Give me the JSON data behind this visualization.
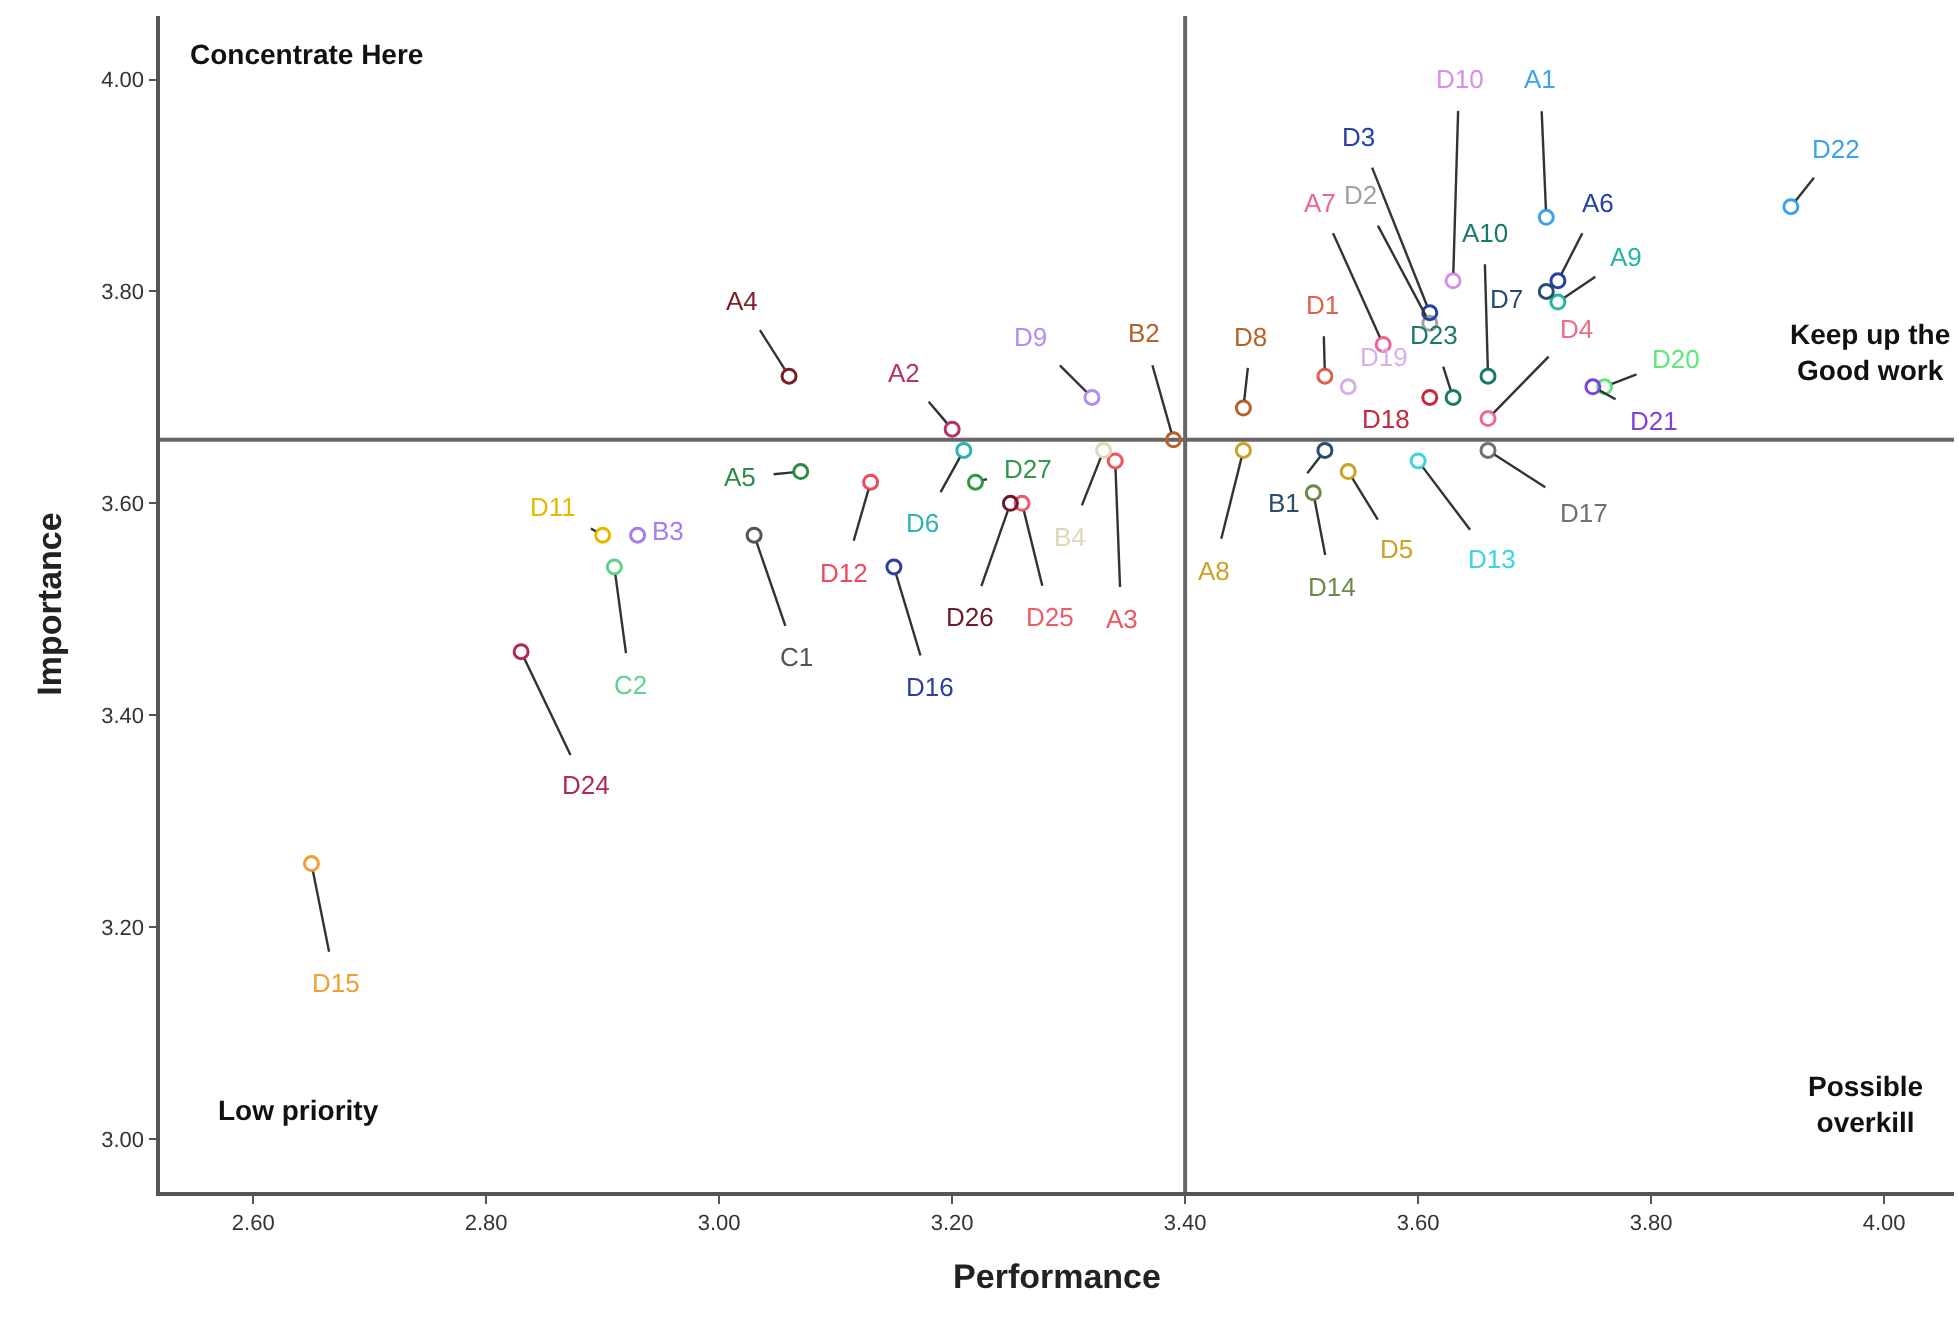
{
  "chart_data": {
    "type": "scatter",
    "xlabel": "Performance",
    "ylabel": "Importance",
    "xlim": [
      2.52,
      4.06
    ],
    "ylim": [
      2.95,
      4.06
    ],
    "xticks": [
      {
        "value": 2.6,
        "label": "2.60"
      },
      {
        "value": 2.8,
        "label": "2.80"
      },
      {
        "value": 3.0,
        "label": "3.00"
      },
      {
        "value": 3.2,
        "label": "3.20"
      },
      {
        "value": 3.4,
        "label": "3.40"
      },
      {
        "value": 3.6,
        "label": "3.60"
      },
      {
        "value": 3.8,
        "label": "3.80"
      },
      {
        "value": 4.0,
        "label": "4.00"
      }
    ],
    "yticks": [
      {
        "value": 3.0,
        "label": "3.00"
      },
      {
        "value": 3.2,
        "label": "3.20"
      },
      {
        "value": 3.4,
        "label": "3.40"
      },
      {
        "value": 3.6,
        "label": "3.60"
      },
      {
        "value": 3.8,
        "label": "3.80"
      },
      {
        "value": 4.0,
        "label": "4.00"
      }
    ],
    "grid": false,
    "legend": false,
    "marker": "circle",
    "ref_lines": [
      {
        "axis": "x",
        "value": 3.4,
        "color": "#666666"
      },
      {
        "axis": "y",
        "value": 3.66,
        "color": "#666666"
      }
    ],
    "annotations": [
      "Concentrate Here",
      "Keep up the\nGood work",
      "Low priority",
      "Possible\noverkill"
    ],
    "series": [
      {
        "name": "A1",
        "color": "#3ba3e8",
        "x": [
          3.71
        ],
        "values": [
          3.87
        ]
      },
      {
        "name": "A2",
        "color": "#b5336b",
        "x": [
          3.2
        ],
        "values": [
          3.67
        ]
      },
      {
        "name": "A3",
        "color": "#f0555e",
        "x": [
          3.34
        ],
        "values": [
          3.64
        ]
      },
      {
        "name": "A4",
        "color": "#7a1f2a",
        "x": [
          3.06
        ],
        "values": [
          3.72
        ]
      },
      {
        "name": "A5",
        "color": "#2e8b45",
        "x": [
          3.07
        ],
        "values": [
          3.63
        ]
      },
      {
        "name": "A6",
        "color": "#2540a8",
        "x": [
          3.72
        ],
        "values": [
          3.81
        ]
      },
      {
        "name": "A7",
        "color": "#f06292",
        "x": [
          3.57
        ],
        "values": [
          3.75
        ]
      },
      {
        "name": "A8",
        "color": "#c9a227",
        "x": [
          3.45
        ],
        "values": [
          3.65
        ]
      },
      {
        "name": "A9",
        "color": "#26b5a5",
        "x": [
          3.72
        ],
        "values": [
          3.79
        ]
      },
      {
        "name": "A10",
        "color": "#1a7a6a",
        "x": [
          3.66
        ],
        "values": [
          3.72
        ]
      },
      {
        "name": "B1",
        "color": "#2a4d6e",
        "x": [
          3.52
        ],
        "values": [
          3.65
        ]
      },
      {
        "name": "B2",
        "color": "#b5612a",
        "x": [
          3.39
        ],
        "values": [
          3.66
        ]
      },
      {
        "name": "B3",
        "color": "#a77cf0",
        "x": [
          2.93
        ],
        "values": [
          3.57
        ]
      },
      {
        "name": "B4",
        "color": "#ddd8bb",
        "x": [
          3.33
        ],
        "values": [
          3.65
        ]
      },
      {
        "name": "C1",
        "color": "#555555",
        "x": [
          3.03
        ],
        "values": [
          3.57
        ]
      },
      {
        "name": "C2",
        "color": "#5fd38d",
        "x": [
          2.91
        ],
        "values": [
          3.54
        ]
      },
      {
        "name": "D1",
        "color": "#e0604a",
        "x": [
          3.52
        ],
        "values": [
          3.72
        ]
      },
      {
        "name": "D2",
        "color": "#a0a0a0",
        "x": [
          3.61
        ],
        "values": [
          3.77
        ]
      },
      {
        "name": "D3",
        "color": "#2440a8",
        "x": [
          3.61
        ],
        "values": [
          3.78
        ]
      },
      {
        "name": "D4",
        "color": "#f06a8a",
        "x": [
          3.66
        ],
        "values": [
          3.68
        ]
      },
      {
        "name": "D5",
        "color": "#c9a227",
        "x": [
          3.54
        ],
        "values": [
          3.63
        ]
      },
      {
        "name": "D6",
        "color": "#2ab5b5",
        "x": [
          3.21
        ],
        "values": [
          3.65
        ]
      },
      {
        "name": "D7",
        "color": "#2a4d6e",
        "x": [
          3.71
        ],
        "values": [
          3.8
        ]
      },
      {
        "name": "D8",
        "color": "#b5612a",
        "x": [
          3.45
        ],
        "values": [
          3.69
        ]
      },
      {
        "name": "D9",
        "color": "#b58cf0",
        "x": [
          3.32
        ],
        "values": [
          3.7
        ]
      },
      {
        "name": "D10",
        "color": "#d68ee8",
        "x": [
          3.63
        ],
        "values": [
          3.81
        ]
      },
      {
        "name": "D11",
        "color": "#e6b800",
        "x": [
          2.9
        ],
        "values": [
          3.57
        ]
      },
      {
        "name": "D12",
        "color": "#f04a5a",
        "x": [
          3.13
        ],
        "values": [
          3.62
        ]
      },
      {
        "name": "D13",
        "color": "#3dd6d6",
        "x": [
          3.6
        ],
        "values": [
          3.64
        ]
      },
      {
        "name": "D14",
        "color": "#6b8a4a",
        "x": [
          3.51
        ],
        "values": [
          3.61
        ]
      },
      {
        "name": "D15",
        "color": "#f0a030",
        "x": [
          2.65
        ],
        "values": [
          3.26
        ]
      },
      {
        "name": "D16",
        "color": "#2a3fa0",
        "x": [
          3.15
        ],
        "values": [
          3.54
        ]
      },
      {
        "name": "D17",
        "color": "#707070",
        "x": [
          3.66
        ],
        "values": [
          3.65
        ]
      },
      {
        "name": "D18",
        "color": "#c8283a",
        "x": [
          3.61
        ],
        "values": [
          3.7
        ]
      },
      {
        "name": "D19",
        "color": "#d8b0e8",
        "x": [
          3.54
        ],
        "values": [
          3.71
        ]
      },
      {
        "name": "D20",
        "color": "#5ee87a",
        "x": [
          3.76
        ],
        "values": [
          3.71
        ]
      },
      {
        "name": "D21",
        "color": "#8040e0",
        "x": [
          3.75
        ],
        "values": [
          3.71
        ]
      },
      {
        "name": "D22",
        "color": "#3ba3e8",
        "x": [
          3.92
        ],
        "values": [
          3.88
        ]
      },
      {
        "name": "D23",
        "color": "#1a7a6a",
        "x": [
          3.63
        ],
        "values": [
          3.7
        ]
      },
      {
        "name": "D24",
        "color": "#b0285a",
        "x": [
          2.83
        ],
        "values": [
          3.46
        ]
      },
      {
        "name": "D25",
        "color": "#f05a6a",
        "x": [
          3.26
        ],
        "values": [
          3.6
        ]
      },
      {
        "name": "D26",
        "color": "#6a1a2a",
        "x": [
          3.25
        ],
        "values": [
          3.6
        ]
      },
      {
        "name": "D27",
        "color": "#2e9a45",
        "x": [
          3.22
        ],
        "values": [
          3.62
        ]
      }
    ]
  }
}
